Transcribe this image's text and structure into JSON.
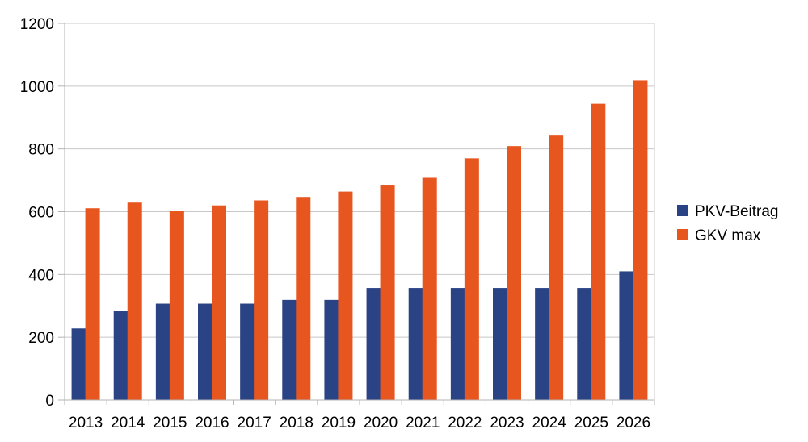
{
  "chart_data": {
    "type": "bar",
    "title": "",
    "xlabel": "",
    "ylabel": "",
    "ylim": [
      0,
      1200
    ],
    "yticks": [
      0,
      200,
      400,
      600,
      800,
      1000,
      1200
    ],
    "grid": true,
    "legend_position": "right",
    "categories": [
      "2013",
      "2014",
      "2015",
      "2016",
      "2017",
      "2018",
      "2019",
      "2020",
      "2021",
      "2022",
      "2023",
      "2024",
      "2025",
      "2026"
    ],
    "series": [
      {
        "name": "PKV-Beitrag",
        "color": "#2a4385",
        "values": [
          228,
          284,
          307,
          307,
          307,
          319,
          319,
          357,
          357,
          357,
          357,
          357,
          357,
          410
        ]
      },
      {
        "name": "GKV max",
        "color": "#e8561f",
        "values": [
          611,
          629,
          603,
          620,
          636,
          647,
          664,
          686,
          708,
          770,
          809,
          845,
          944,
          1019
        ]
      }
    ]
  }
}
